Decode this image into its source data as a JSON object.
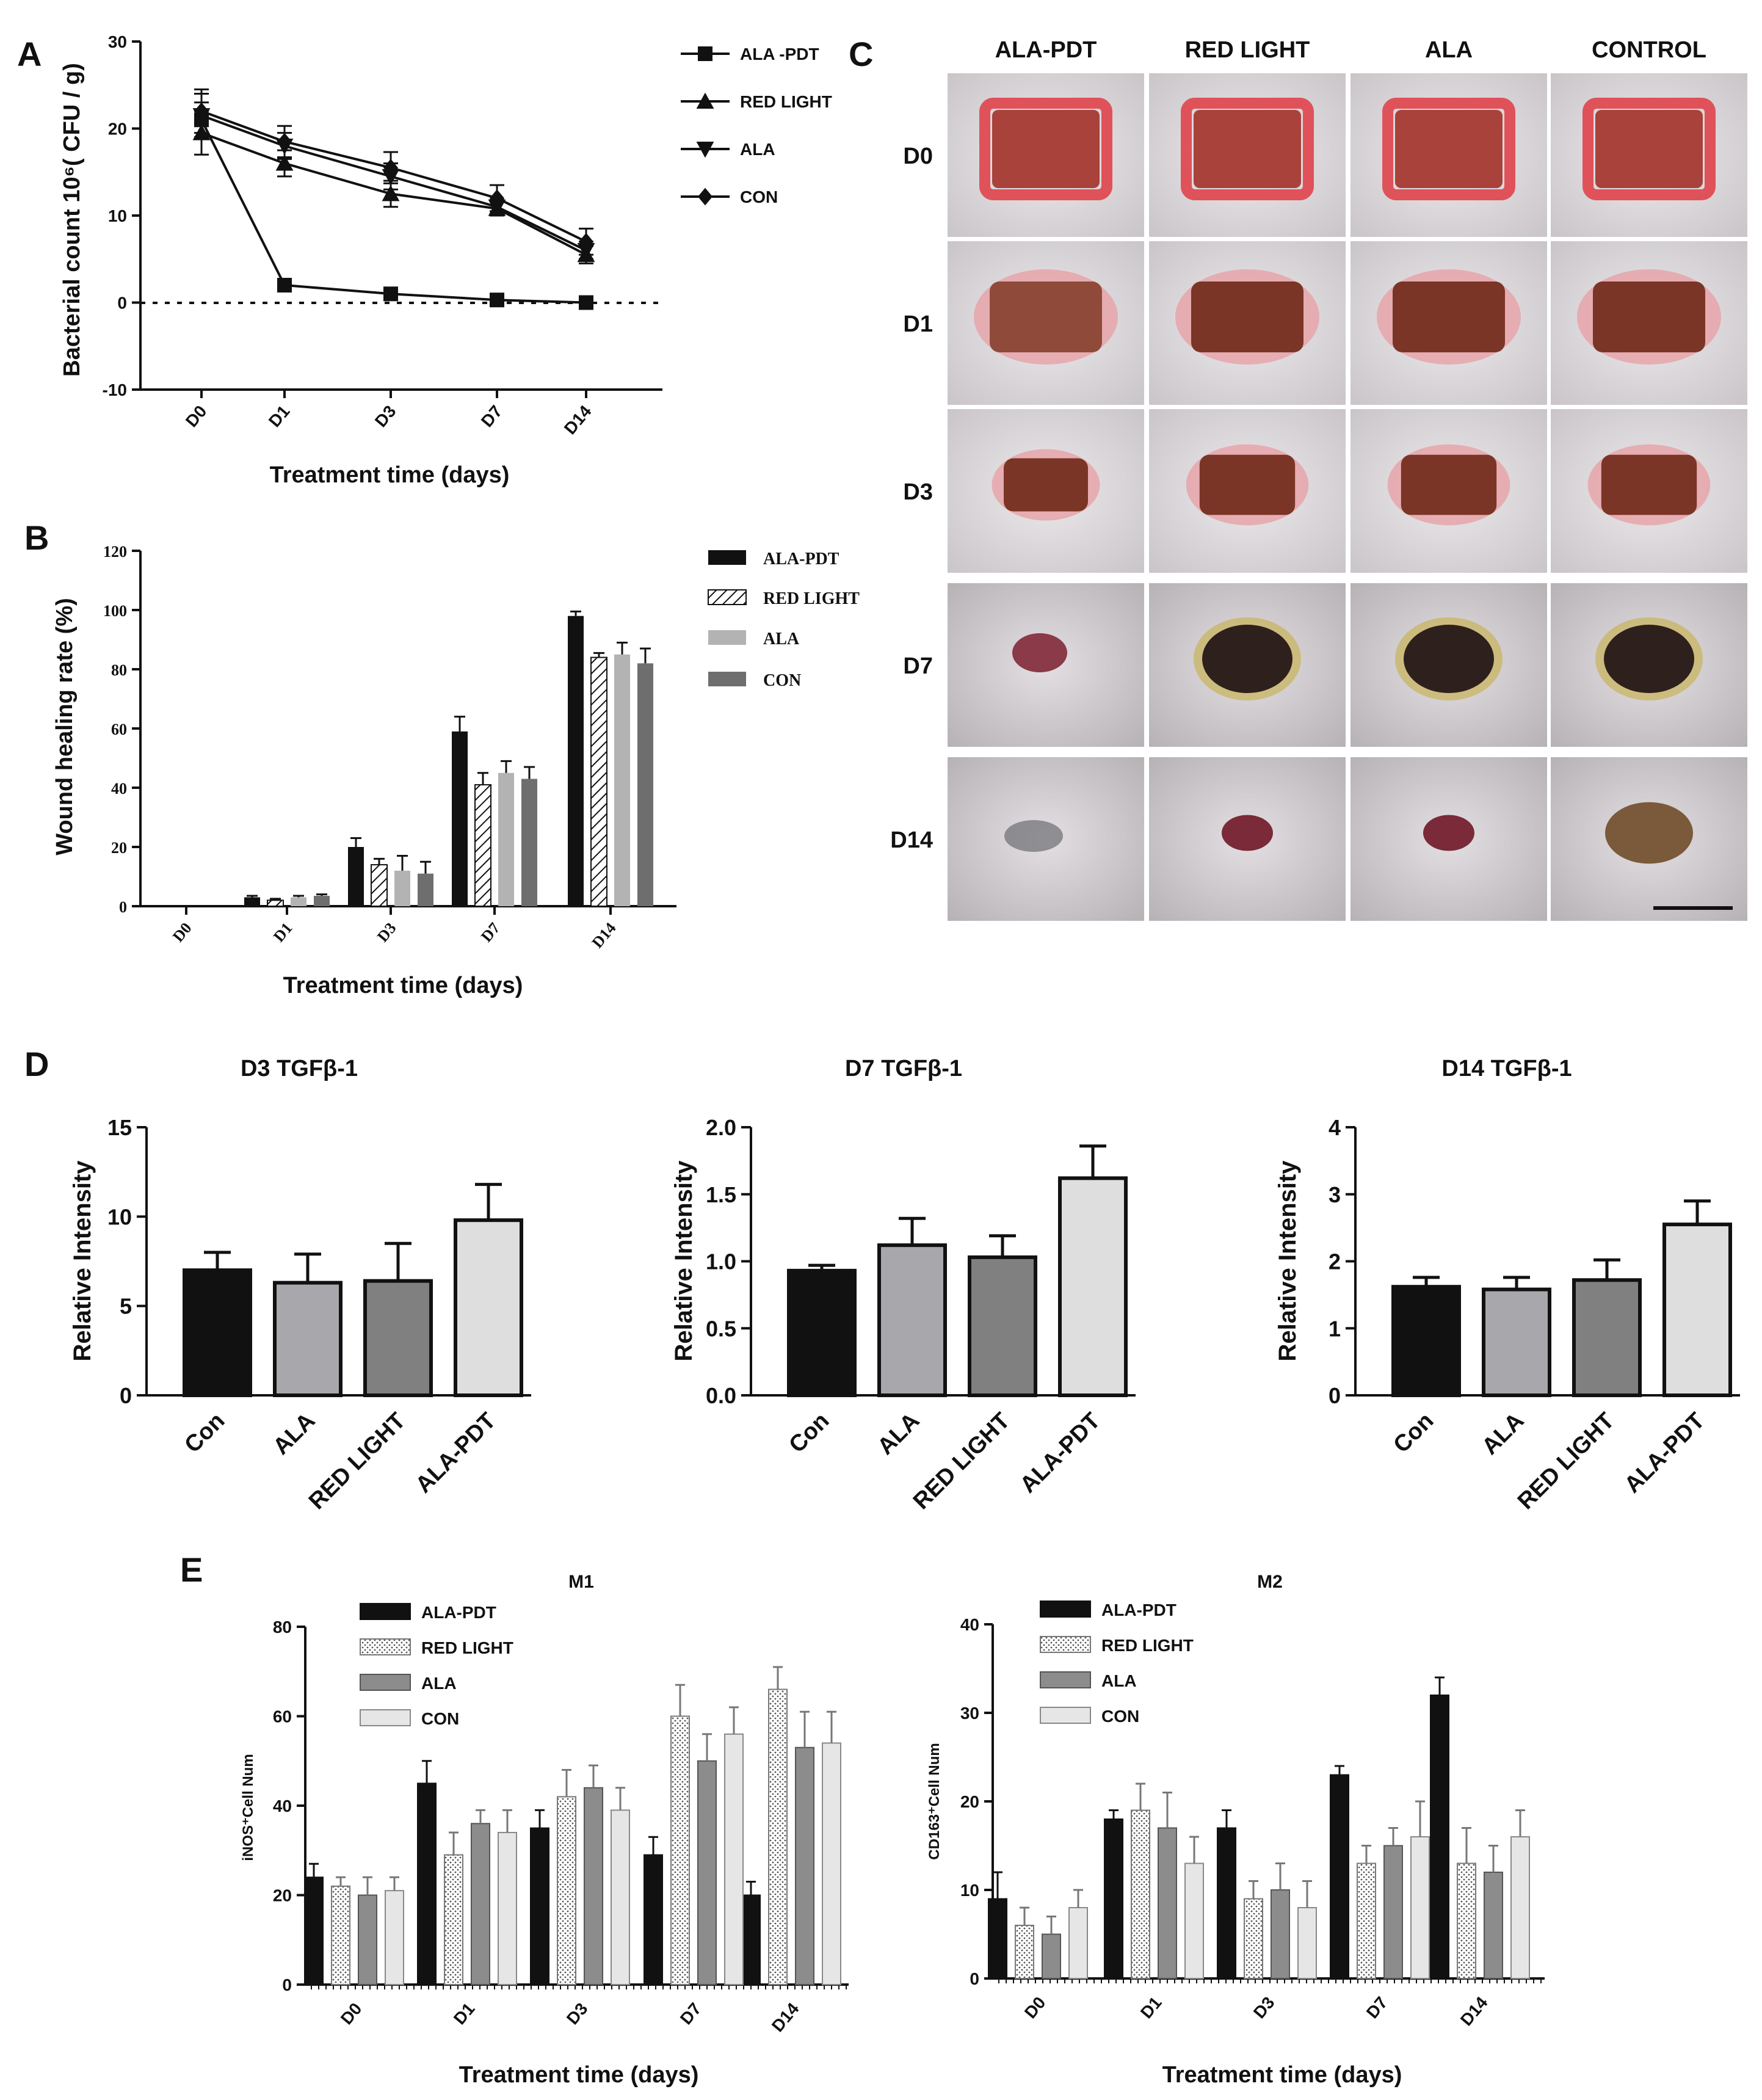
{
  "panel_labels": {
    "A": "A",
    "B": "B",
    "C": "C",
    "D": "D",
    "E": "E"
  },
  "colors": {
    "ala_pdt": "#111111",
    "red_light": "#ffffff",
    "ala": "#b3b3b3",
    "con": "#6e6e6e",
    "d_con": "#111111",
    "d_ala": "#a8a8ac",
    "d_red": "#808080",
    "d_pdt": "#dedede",
    "e_ala": "#8c8c8c",
    "e_con": "#e6e6e6"
  },
  "chart_data": [
    {
      "id": "A",
      "type": "line",
      "title": "",
      "xlabel": "Treatment time (days)",
      "ylabel": "Bacterial count 10⁶( CFU / g)",
      "categories": [
        "D0",
        "D1",
        "D3",
        "D7",
        "D14"
      ],
      "ylim": [
        -10,
        30
      ],
      "yticks": [
        -10,
        0,
        10,
        20,
        30
      ],
      "reference_line": 0,
      "series": [
        {
          "name": "ALA -PDT",
          "marker": "square",
          "values": [
            21,
            2,
            1,
            0.3,
            0
          ],
          "errors": [
            2,
            0.3,
            0.2,
            0.2,
            0.2
          ]
        },
        {
          "name": "RED LIGHT",
          "marker": "triangle-up",
          "values": [
            19.5,
            16,
            12.5,
            10.8,
            5.5
          ],
          "errors": [
            2.5,
            1.5,
            1.5,
            0.8,
            1
          ]
        },
        {
          "name": "ALA",
          "marker": "triangle-down",
          "values": [
            21.5,
            18,
            14.5,
            11,
            6
          ],
          "errors": [
            2.5,
            1.5,
            1.5,
            0.8,
            1
          ]
        },
        {
          "name": "CON",
          "marker": "diamond",
          "values": [
            22,
            18.5,
            15.5,
            12,
            7
          ],
          "errors": [
            2.5,
            1.8,
            1.8,
            1.5,
            1.5
          ]
        }
      ]
    },
    {
      "id": "B",
      "type": "bar",
      "title": "",
      "xlabel": "Treatment time (days)",
      "ylabel": "Wound healing rate (%)",
      "categories": [
        "D0",
        "D1",
        "D3",
        "D7",
        "D14"
      ],
      "ylim": [
        0,
        120
      ],
      "yticks": [
        0,
        20,
        40,
        60,
        80,
        100,
        120
      ],
      "series": [
        {
          "name": "ALA-PDT",
          "values": [
            0,
            3,
            20,
            59,
            98
          ],
          "errors": [
            0,
            0.5,
            3,
            5,
            1.5
          ]
        },
        {
          "name": "RED LIGHT",
          "values": [
            0,
            2,
            14,
            41,
            84
          ],
          "errors": [
            0,
            0.5,
            2,
            4,
            1.5
          ]
        },
        {
          "name": "ALA",
          "values": [
            0,
            3,
            12,
            45,
            85
          ],
          "errors": [
            0,
            0.5,
            5,
            4,
            4
          ]
        },
        {
          "name": "CON",
          "values": [
            0,
            3.5,
            11,
            43,
            82
          ],
          "errors": [
            0,
            0.5,
            4,
            4,
            5
          ]
        }
      ]
    },
    {
      "id": "D3",
      "type": "bar",
      "title": "D3  TGFβ-1",
      "xlabel": "",
      "ylabel": "Relative Intensity",
      "categories": [
        "Con",
        "ALA",
        "RED LIGHT",
        "ALA-PDT"
      ],
      "ylim": [
        0,
        15
      ],
      "yticks": [
        0,
        5,
        10,
        15
      ],
      "tick_labels": [
        "0",
        "5",
        "10",
        "15"
      ],
      "values": [
        7,
        6.3,
        6.4,
        9.8
      ],
      "errors": [
        1,
        1.6,
        2.1,
        2
      ]
    },
    {
      "id": "D7",
      "type": "bar",
      "title": "D7  TGFβ-1",
      "xlabel": "",
      "ylabel": "Relative Intensity",
      "categories": [
        "Con",
        "ALA",
        "RED LIGHT",
        "ALA-PDT"
      ],
      "ylim": [
        0,
        2
      ],
      "yticks": [
        0,
        0.5,
        1,
        1.5,
        2
      ],
      "tick_labels": [
        "0.0",
        "0.5",
        "1.0",
        "1.5",
        "2.0"
      ],
      "values": [
        0.93,
        1.12,
        1.03,
        1.62
      ],
      "errors": [
        0.04,
        0.2,
        0.16,
        0.24
      ]
    },
    {
      "id": "D14",
      "type": "bar",
      "title": "D14  TGFβ-1",
      "xlabel": "",
      "ylabel": "Relative Intensity",
      "categories": [
        "Con",
        "ALA",
        "RED LIGHT",
        "ALA-PDT"
      ],
      "ylim": [
        0,
        4
      ],
      "yticks": [
        0,
        1,
        2,
        3,
        4
      ],
      "tick_labels": [
        "0",
        "1",
        "2",
        "3",
        "4"
      ],
      "values": [
        1.62,
        1.58,
        1.72,
        2.55
      ],
      "errors": [
        0.14,
        0.18,
        0.3,
        0.35
      ]
    },
    {
      "id": "M1",
      "type": "bar",
      "title": "M1",
      "xlabel": "Treatment time (days)",
      "ylabel": "iNOS⁺Cell Num",
      "categories": [
        "D0",
        "D1",
        "D3",
        "D7",
        "D14"
      ],
      "ylim": [
        0,
        80
      ],
      "yticks": [
        0,
        20,
        40,
        60,
        80
      ],
      "series": [
        {
          "name": "ALA-PDT",
          "values": [
            24,
            45,
            35,
            29,
            20
          ],
          "errors": [
            3,
            5,
            4,
            4,
            3
          ]
        },
        {
          "name": "RED LIGHT",
          "values": [
            22,
            29,
            42,
            60,
            66
          ],
          "errors": [
            2,
            5,
            6,
            7,
            5
          ]
        },
        {
          "name": "ALA",
          "values": [
            20,
            36,
            44,
            50,
            53
          ],
          "errors": [
            4,
            3,
            5,
            6,
            8
          ]
        },
        {
          "name": "CON",
          "values": [
            21,
            34,
            39,
            56,
            54
          ],
          "errors": [
            3,
            5,
            5,
            6,
            7
          ]
        }
      ]
    },
    {
      "id": "M2",
      "type": "bar",
      "title": "M2",
      "xlabel": "Treatment time (days)",
      "ylabel": "CD163⁺Cell Num",
      "categories": [
        "D0",
        "D1",
        "D3",
        "D7",
        "D14"
      ],
      "ylim": [
        0,
        40
      ],
      "yticks": [
        0,
        10,
        20,
        30,
        40
      ],
      "series": [
        {
          "name": "ALA-PDT",
          "values": [
            9,
            18,
            17,
            23,
            32
          ],
          "errors": [
            3,
            1,
            2,
            1,
            2
          ]
        },
        {
          "name": "RED LIGHT",
          "values": [
            6,
            19,
            9,
            13,
            13
          ],
          "errors": [
            2,
            3,
            2,
            2,
            4
          ]
        },
        {
          "name": "ALA",
          "values": [
            5,
            17,
            10,
            15,
            12
          ],
          "errors": [
            2,
            4,
            3,
            2,
            3
          ]
        },
        {
          "name": "CON",
          "values": [
            8,
            13,
            8,
            16,
            16
          ],
          "errors": [
            2,
            3,
            3,
            4,
            3
          ]
        }
      ]
    }
  ],
  "photo_grid": {
    "columns": [
      "ALA-PDT",
      "RED LIGHT",
      "ALA",
      "CONTROL"
    ],
    "rows": [
      "D0",
      "D1",
      "D3",
      "D7",
      "D14"
    ]
  }
}
